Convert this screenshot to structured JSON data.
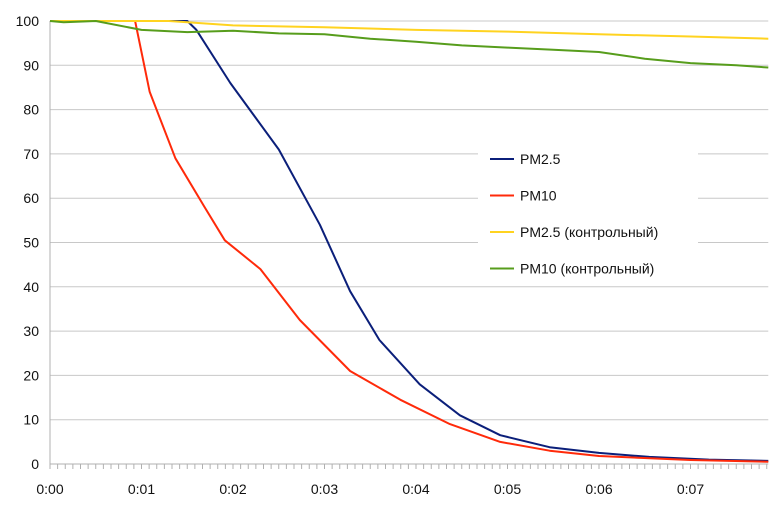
{
  "chart_data": {
    "type": "line",
    "title": "",
    "xlabel": "",
    "ylabel": "",
    "xlim": [
      0,
      7.85
    ],
    "ylim": [
      0,
      100
    ],
    "x_unit": "minutes",
    "x_tick_labels": [
      "0:00",
      "0:01",
      "0:02",
      "0:03",
      "0:04",
      "0:05",
      "0:06",
      "0:07"
    ],
    "y_tick_labels": [
      "0",
      "10",
      "20",
      "30",
      "40",
      "50",
      "60",
      "70",
      "80",
      "90",
      "100"
    ],
    "grid": "horizontal",
    "legend_position": "right-center",
    "series": [
      {
        "name": "PM2.5",
        "color": "#0b1f7a",
        "x": [
          0,
          1.5,
          1.6,
          1.97,
          2.5,
          2.95,
          3.28,
          3.6,
          4.04,
          4.48,
          4.92,
          5.46,
          6.0,
          6.55,
          7.2,
          7.85
        ],
        "y": [
          100,
          100,
          98,
          86,
          71,
          54,
          39,
          28,
          18,
          11,
          6.5,
          3.8,
          2.5,
          1.6,
          1.0,
          0.7
        ]
      },
      {
        "name": "PM10",
        "color": "#ff2a0a",
        "x": [
          0,
          0.93,
          1.09,
          1.37,
          1.69,
          1.91,
          2.3,
          2.73,
          3.28,
          3.83,
          4.37,
          4.92,
          5.46,
          6.0,
          7.0,
          7.85
        ],
        "y": [
          100,
          100,
          84,
          69,
          58,
          50.5,
          44,
          32.5,
          21,
          14.5,
          9,
          5,
          3,
          1.8,
          0.9,
          0.5
        ]
      },
      {
        "name": "PM2.5 (контрольный)",
        "color": "#ffd320",
        "x": [
          0,
          1.3,
          2.0,
          3.0,
          4.0,
          5.0,
          6.0,
          7.0,
          7.85
        ],
        "y": [
          100,
          100,
          99,
          98.6,
          98,
          97.6,
          97,
          96.5,
          96
        ]
      },
      {
        "name": "PM10 (контрольный)",
        "color": "#579d1c",
        "x": [
          0,
          0.15,
          0.5,
          1.0,
          1.5,
          2.0,
          2.5,
          3.0,
          3.5,
          4.0,
          4.5,
          5.0,
          5.5,
          6.0,
          6.5,
          7.0,
          7.5,
          7.85
        ],
        "y": [
          100,
          99.7,
          100,
          98,
          97.5,
          97.8,
          97.2,
          97,
          96,
          95.3,
          94.5,
          94,
          93.5,
          93,
          91.5,
          90.5,
          90,
          89.5
        ]
      }
    ]
  }
}
